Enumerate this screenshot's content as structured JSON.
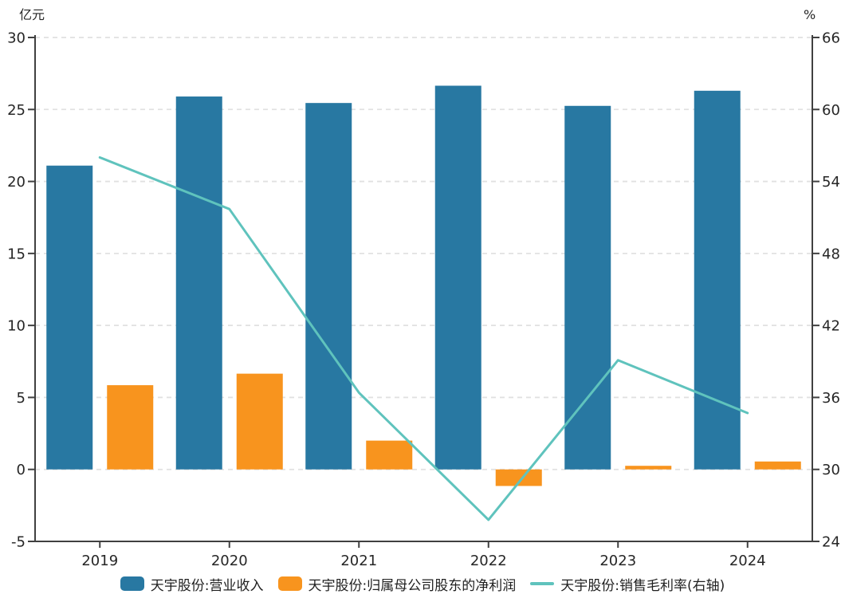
{
  "chart_data": {
    "type": "bar+line combo",
    "title": "",
    "categories": [
      "2019",
      "2020",
      "2021",
      "2022",
      "2023",
      "2024"
    ],
    "series": [
      {
        "name": "天宇股份:营业收入",
        "type": "bar",
        "axis": "left",
        "color": "#2878a2",
        "values": [
          21.1,
          25.9,
          25.45,
          26.65,
          25.25,
          26.3
        ]
      },
      {
        "name": "天宇股份:归属母公司股东的净利润",
        "type": "bar",
        "axis": "left",
        "color": "#f8941e",
        "values": [
          5.85,
          6.65,
          2.0,
          -1.15,
          0.25,
          0.55
        ]
      },
      {
        "name": "天宇股份:销售毛利率(右轴)",
        "type": "line",
        "axis": "right",
        "color": "#5fc3bd",
        "values": [
          56.0,
          51.7,
          36.4,
          25.8,
          39.1,
          34.7
        ]
      }
    ],
    "left_axis": {
      "unit": "亿元",
      "min": -5,
      "max": 30,
      "ticks": [
        30,
        25,
        20,
        15,
        10,
        5,
        0,
        -5
      ]
    },
    "right_axis": {
      "unit": "%",
      "min": 24,
      "max": 66,
      "ticks": [
        66,
        60,
        54,
        48,
        42,
        36,
        30,
        24
      ]
    },
    "legend_position": "bottom",
    "grid": "horizontal-dashed",
    "grid_color": "#e1e1e1",
    "axis_color": "#404040",
    "text_color": "#262626"
  }
}
